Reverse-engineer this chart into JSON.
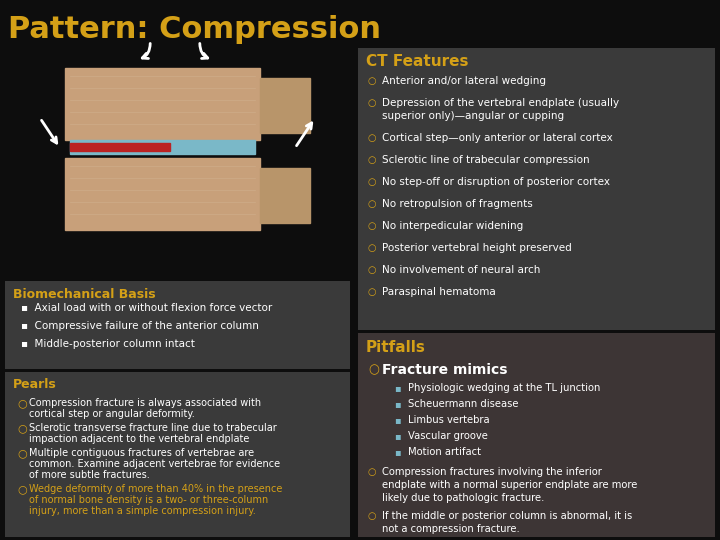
{
  "title": "Pattern: Compression",
  "title_color": "#D4A017",
  "bg_color": "#0D0D0D",
  "panel_ct": "#3A3A3A",
  "panel_bio": "#3A3A3A",
  "panel_pearls": "#3A3A3A",
  "panel_pitfalls": "#3D3535",
  "gold": "#D4A017",
  "white": "#FFFFFF",
  "ct_features_title": "CT Features",
  "ct_features": [
    "Anterior and/or lateral wedging",
    "Depression of the vertebral endplate (usually\nsuperior only)—angular or cupping",
    "Cortical step—only anterior or lateral cortex",
    "Sclerotic line of trabecular compression",
    "No step-off or disruption of posterior cortex",
    "No retropulsion of fragments",
    "No interpedicular widening",
    "Posterior vertebral height preserved",
    "No involvement of neural arch",
    "Paraspinal hematoma"
  ],
  "biomechanical_title": "Biomechanical Basis",
  "biomechanical_items": [
    "Axial load with or without flexion force vector",
    "Compressive failure of the anterior column",
    "Middle-posterior column intact"
  ],
  "pearls_title": "Pearls",
  "pearls_items": [
    "Compression fracture is always associated with\ncortical step or angular deformity.",
    "Sclerotic transverse fracture line due to trabecular\nimpaction adjacent to the vertebral endplate",
    "Multiple contiguous fractures of vertebrae are\ncommon. Examine adjacent vertebrae for evidence\nof more subtle fractures.",
    "Wedge deformity of more than 40% in the presence\nof normal bone density is a two- or three-column\ninjury, more than a simple compression injury."
  ],
  "pitfalls_title": "Pitfalls",
  "fracture_mimics_title": "Fracture mimics",
  "fracture_mimics_sub": [
    "Physiologic wedging at the TL junction",
    "Scheuermann disease",
    "Limbus vertebra",
    "Vascular groove",
    "Motion artifact"
  ],
  "pitfalls_extra": [
    "Compression fractures involving the inferior\nendplate with a normal superior endplate are more\nlikely due to pathologic fracture.",
    "If the middle or posterior column is abnormal, it is\nnot a compression fracture."
  ]
}
